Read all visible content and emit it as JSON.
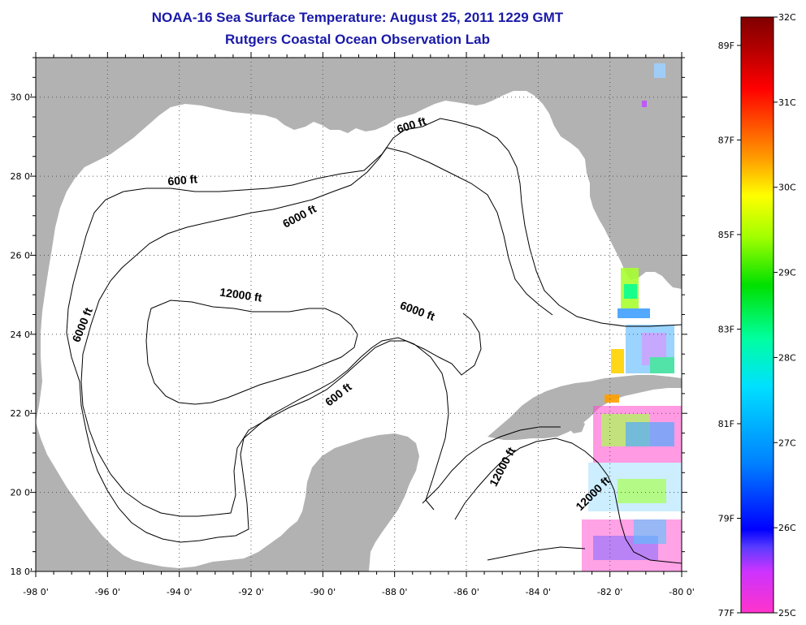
{
  "title_line1": "NOAA-16 Sea Surface Temperature:  August 25, 2011 1229 GMT",
  "title_line2": "Rutgers Coastal Ocean Observation Lab",
  "map": {
    "lon_range": [
      -98,
      -80
    ],
    "lat_range": [
      18,
      31
    ],
    "lon_ticks": [
      "-98 0'",
      "-96 0'",
      "-94 0'",
      "-92 0'",
      "-90 0'",
      "-88 0'",
      "-86 0'",
      "-84 0'",
      "-82 0'",
      "-80 0'"
    ],
    "lat_ticks": [
      "18 0'",
      "20 0'",
      "22 0'",
      "24 0'",
      "26 0'",
      "28 0'",
      "30 0'"
    ],
    "land_color": "#b2b2b2",
    "ocean_color": "#ffffff",
    "contour_labels": [
      {
        "text": "600 ft",
        "lon": -93.9,
        "lat": 27.8,
        "angle": -5
      },
      {
        "text": "600 ft",
        "lon": -87.5,
        "lat": 29.2,
        "angle": -18
      },
      {
        "text": "6000 ft",
        "lon": -90.6,
        "lat": 26.9,
        "angle": -28
      },
      {
        "text": "12000 ft",
        "lon": -92.3,
        "lat": 24.9,
        "angle": 8
      },
      {
        "text": "6000 ft",
        "lon": -87.4,
        "lat": 24.5,
        "angle": 20
      },
      {
        "text": "6000 ft",
        "lon": -96.6,
        "lat": 24.2,
        "angle": -68
      },
      {
        "text": "600 ft",
        "lon": -89.5,
        "lat": 22.4,
        "angle": -38
      },
      {
        "text": "12000 ft",
        "lon": -84.9,
        "lat": 20.6,
        "angle": -62
      },
      {
        "text": "12000 ft",
        "lon": -82.4,
        "lat": 19.9,
        "angle": -45
      }
    ]
  },
  "colorbar": {
    "celsius_labels": [
      "32C",
      "31C",
      "30C",
      "29C",
      "28C",
      "27C",
      "26C",
      "25C"
    ],
    "fahrenheit_labels": [
      "89F",
      "87F",
      "85F",
      "83F",
      "81F",
      "79F",
      "77F"
    ],
    "colors": [
      "#ff33cc",
      "#cc33ff",
      "#5a3cff",
      "#0000ff",
      "#0080ff",
      "#00e0ff",
      "#00ffa0",
      "#00e000",
      "#a0ff00",
      "#ffff00",
      "#ffa000",
      "#ff5000",
      "#ff0000",
      "#b00000",
      "#800000"
    ]
  }
}
